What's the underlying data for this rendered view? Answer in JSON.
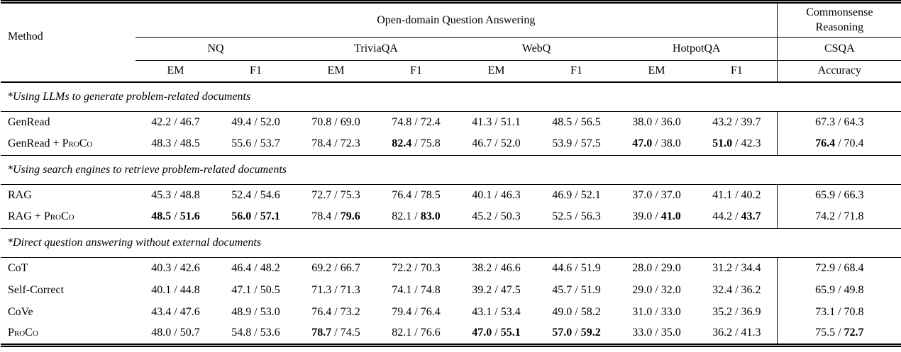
{
  "header": {
    "method": "Method",
    "qa_group": "Open-domain Question Answering",
    "cr_group": "Commonsense Reasoning",
    "datasets": [
      "NQ",
      "TriviaQA",
      "WebQ",
      "HotpotQA"
    ],
    "csqa": "CSQA",
    "em": "EM",
    "f1": "F1",
    "accuracy": "Accuracy"
  },
  "table": {
    "bold_marker_note": "values wrapped in asterisks are shown bold",
    "sections": [
      {
        "title": "*Using LLMs to generate problem-related documents",
        "rows": [
          {
            "method_pre": "GenRead",
            "method_sc": "",
            "cells": [
              "42.2 / 46.7",
              "49.4 / 52.0",
              "70.8 / 69.0",
              "74.8 / 72.4",
              "41.3 / 51.1",
              "48.5 / 56.5",
              "38.0 / 36.0",
              "43.2 / 39.7",
              "67.3 / 64.3"
            ]
          },
          {
            "method_pre": "GenRead + ",
            "method_sc": "ProCo",
            "cells": [
              "48.3 / 48.5",
              "55.6 / 53.7",
              "78.4 / 72.3",
              "*82.4* / 75.8",
              "46.7 / 52.0",
              "53.9 / 57.5",
              "*47.0* / 38.0",
              "*51.0* / 42.3",
              "*76.4* / 70.4"
            ]
          }
        ]
      },
      {
        "title": "*Using search engines to retrieve problem-related documents",
        "rows": [
          {
            "method_pre": "RAG",
            "method_sc": "",
            "cells": [
              "45.3 / 48.8",
              "52.4 / 54.6",
              "72.7 / 75.3",
              "76.4 / 78.5",
              "40.1 / 46.3",
              "46.9 / 52.1",
              "37.0 / 37.0",
              "41.1 / 40.2",
              "65.9 / 66.3"
            ]
          },
          {
            "method_pre": "RAG + ",
            "method_sc": "ProCo",
            "cells": [
              "*48.5* / *51.6*",
              "*56.0* / *57.1*",
              "78.4 / *79.6*",
              "82.1 / *83.0*",
              "45.2 / 50.3",
              "52.5 / 56.3",
              "39.0 / *41.0*",
              "44.2 / *43.7*",
              "74.2 / 71.8"
            ]
          }
        ]
      },
      {
        "title": "*Direct question answering without external documents",
        "rows": [
          {
            "method_pre": "CoT",
            "method_sc": "",
            "cells": [
              "40.3 / 42.6",
              "46.4 / 48.2",
              "69.2 / 66.7",
              "72.2 / 70.3",
              "38.2 / 46.6",
              "44.6 / 51.9",
              "28.0 / 29.0",
              "31.2 / 34.4",
              "72.9 / 68.4"
            ]
          },
          {
            "method_pre": "Self-Correct",
            "method_sc": "",
            "cells": [
              "40.1 / 44.8",
              "47.1 / 50.5",
              "71.3 / 71.3",
              "74.1 / 74.8",
              "39.2 / 47.5",
              "45.7 / 51.9",
              "29.0 / 32.0",
              "32.4 / 36.2",
              "65.9 / 49.8"
            ]
          },
          {
            "method_pre": "CoVe",
            "method_sc": "",
            "cells": [
              "43.4 / 47.6",
              "48.9 / 53.0",
              "76.4 / 73.2",
              "79.4 / 76.4",
              "43.1 / 53.4",
              "49.0 / 58.2",
              "31.0 / 33.0",
              "35.2 / 36.9",
              "73.1 / 70.8"
            ]
          },
          {
            "method_pre": "",
            "method_sc": "ProCo",
            "cells": [
              "48.0 / 50.7",
              "54.8 / 53.6",
              "*78.7* / 74.5",
              "82.1 / 76.6",
              "*47.0* / *55.1*",
              "*57.0* / *59.2*",
              "33.0 / 35.0",
              "36.2 / 41.3",
              "75.5 / *72.7*"
            ]
          }
        ]
      }
    ]
  }
}
